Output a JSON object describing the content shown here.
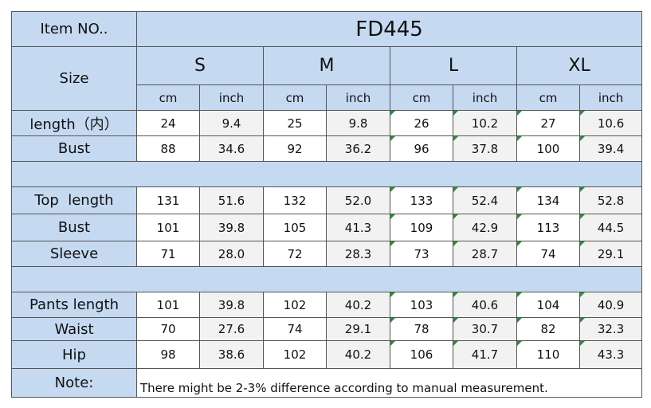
{
  "item_label": "Item NO..",
  "item_number": "FD445",
  "size_label": "Size",
  "sizes": [
    "S",
    "M",
    "L",
    "XL"
  ],
  "units": [
    "cm",
    "inch",
    "cm",
    "inch",
    "cm",
    "inch",
    "cm",
    "inch"
  ],
  "rows": {
    "length": {
      "label": "length（内）",
      "values": [
        "24",
        "9.4",
        "25",
        "9.8",
        "26",
        "10.2",
        "27",
        "10.6"
      ]
    },
    "bust1": {
      "label": "Bust",
      "values": [
        "88",
        "34.6",
        "92",
        "36.2",
        "96",
        "37.8",
        "100",
        "39.4"
      ]
    },
    "top_length": {
      "label": "Top  length",
      "values": [
        "131",
        "51.6",
        "132",
        "52.0",
        "133",
        "52.4",
        "134",
        "52.8"
      ]
    },
    "bust2": {
      "label": "Bust",
      "values": [
        "101",
        "39.8",
        "105",
        "41.3",
        "109",
        "42.9",
        "113",
        "44.5"
      ]
    },
    "sleeve": {
      "label": "Sleeve",
      "values": [
        "71",
        "28.0",
        "72",
        "28.3",
        "73",
        "28.7",
        "74",
        "29.1"
      ]
    },
    "pants_length": {
      "label": "Pants length",
      "values": [
        "101",
        "39.8",
        "102",
        "40.2",
        "103",
        "40.6",
        "104",
        "40.9"
      ]
    },
    "waist": {
      "label": "Waist",
      "values": [
        "70",
        "27.6",
        "74",
        "29.1",
        "78",
        "30.7",
        "82",
        "32.3"
      ]
    },
    "hip": {
      "label": "Hip",
      "values": [
        "98",
        "38.6",
        "102",
        "40.2",
        "106",
        "41.7",
        "110",
        "43.3"
      ]
    }
  },
  "note_label": "Note:",
  "note_text": "There might be 2-3% difference according to manual measurement.",
  "colors": {
    "header_bg": "#c5d9f1",
    "alt_cell_bg": "#f2f2f2",
    "marker": "#2e8b3d"
  }
}
